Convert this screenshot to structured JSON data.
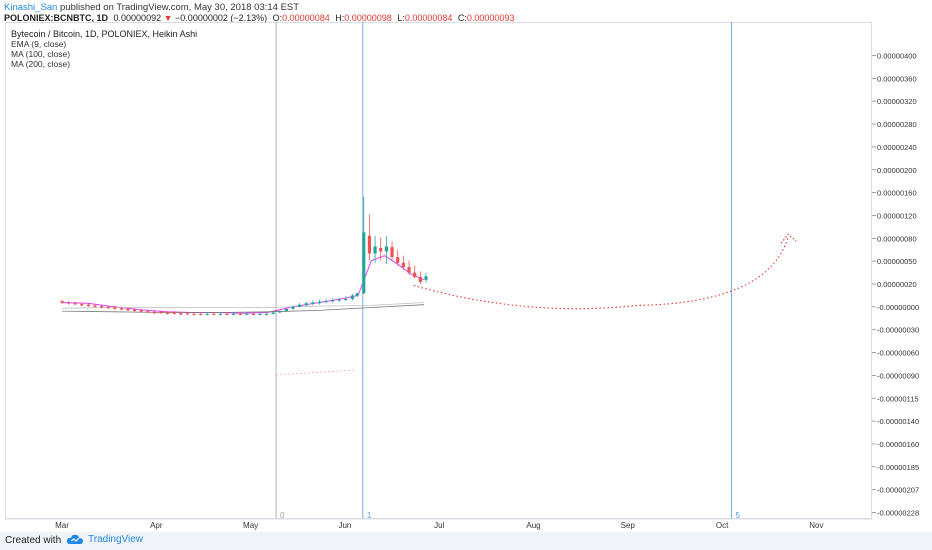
{
  "header": {
    "author": "Kinashi_San",
    "published": "published on TradingView.com, May 30, 2018 03:14 EST",
    "symbol": "POLONIEX:BCNBTC, 1D",
    "last": "0.00000092",
    "change_arrow": "▼",
    "change": "−0.00000002 (−2.13%)",
    "o_label": "O:",
    "o_value": "0.00000084",
    "h_label": "H:",
    "h_value": "0.00000098",
    "l_label": "L:",
    "l_value": "0.00000084",
    "c_label": "C:",
    "c_value": "0.00000093"
  },
  "legend": {
    "title": "Bytecoin / Bitcoin, 1D, POLONIEX, Heikin Ashi",
    "ema": "EMA (9, close)",
    "ma100": "MA (100, close)",
    "ma200": "MA (200, close)"
  },
  "footer": {
    "created": "Created with",
    "brand": "TradingView"
  },
  "colors": {
    "up": "#26a69a",
    "down": "#ef5350",
    "ema": "#e040fb",
    "ma100": "#bdbdbd",
    "ma200": "#757575",
    "vline": "#5b9bd5",
    "arrow": "#e53935",
    "price_tag": "#26a69a"
  },
  "chart_data": {
    "type": "candlestick",
    "style": "Heikin Ashi",
    "title": "Bytecoin / Bitcoin, 1D, POLONIEX, Heikin Ashi",
    "x_ticks": [
      "Mar",
      "Apr",
      "May",
      "Jun",
      "Jul",
      "Aug",
      "Sep",
      "Oct",
      "Nov"
    ],
    "y_ticks": [
      "0.00000400",
      "0.00000360",
      "0.00000320",
      "0.00000280",
      "0.00000240",
      "0.00000200",
      "0.00000160",
      "0.00000120",
      "0.00000080",
      "0.00000050",
      "0.00000020",
      "-0.00000000",
      "-0.00000030",
      "-0.00000060",
      "-0.00000090",
      "-0.00000115",
      "-0.00000140",
      "-0.00000160",
      "-0.00000185",
      "-0.00000207",
      "-0.00000228"
    ],
    "last_price": "0.00000092",
    "grid": false,
    "vertical_markers": [
      {
        "label": "0",
        "month_pos": 2.27
      },
      {
        "label": "1",
        "month_pos": 3.19
      },
      {
        "label": "5",
        "month_pos": 7.1
      }
    ],
    "projection": {
      "type": "dotted-curve-arrow",
      "start": [
        3.73,
        8e-07
      ],
      "trough": [
        6.1,
        5.2e-07
      ],
      "end": [
        7.7,
        1.48e-06
      ]
    },
    "series": [
      {
        "name": "EMA (9, close)",
        "values": [
          [
            0.0,
            5.6e-07
          ],
          [
            0.27,
            5.5e-07
          ],
          [
            0.55,
            5e-07
          ],
          [
            0.82,
            4.6e-07
          ],
          [
            1.1,
            4.3e-07
          ],
          [
            1.37,
            4.2e-07
          ],
          [
            1.65,
            4.2e-07
          ],
          [
            1.92,
            4.1e-07
          ],
          [
            2.18,
            4.2e-07
          ],
          [
            2.45,
            5e-07
          ],
          [
            2.73,
            5.6e-07
          ],
          [
            3.0,
            6.2e-07
          ],
          [
            3.14,
            6.6e-07
          ],
          [
            3.28,
            1.15e-06
          ],
          [
            3.42,
            1.22e-06
          ],
          [
            3.56,
            1.1e-06
          ],
          [
            3.7,
            9.6e-07
          ],
          [
            3.84,
            8.8e-07
          ]
        ]
      },
      {
        "name": "MA (100, close)",
        "values": [
          [
            0.0,
            4.8e-07
          ],
          [
            0.55,
            4.9e-07
          ],
          [
            1.1,
            4.9e-07
          ],
          [
            1.65,
            4.9e-07
          ],
          [
            2.18,
            4.9e-07
          ],
          [
            2.73,
            5.1e-07
          ],
          [
            3.28,
            5.2e-07
          ],
          [
            3.84,
            5.6e-07
          ]
        ]
      },
      {
        "name": "MA (200, close)",
        "values": [
          [
            0.0,
            4.4e-07
          ],
          [
            0.55,
            4.3e-07
          ],
          [
            1.1,
            4.2e-07
          ],
          [
            1.65,
            4.2e-07
          ],
          [
            2.18,
            4.3e-07
          ],
          [
            2.73,
            4.5e-07
          ],
          [
            3.28,
            4.9e-07
          ],
          [
            3.84,
            5.3e-07
          ]
        ]
      }
    ],
    "candles": [
      [
        0.0,
        5.8e-07,
        6e-07,
        5.4e-07,
        5.6e-07
      ],
      [
        0.07,
        5.6e-07,
        5.8e-07,
        5.3e-07,
        5.5e-07
      ],
      [
        0.14,
        5.5e-07,
        5.7e-07,
        5.2e-07,
        5.4e-07
      ],
      [
        0.21,
        5.4e-07,
        5.6e-07,
        5.1e-07,
        5.2e-07
      ],
      [
        0.28,
        5.3e-07,
        5.5e-07,
        5e-07,
        5.1e-07
      ],
      [
        0.35,
        5.2e-07,
        5.4e-07,
        4.9e-07,
        5e-07
      ],
      [
        0.42,
        5.1e-07,
        5.3e-07,
        4.8e-07,
        4.9e-07
      ],
      [
        0.49,
        5e-07,
        5.2e-07,
        4.7e-07,
        4.8e-07
      ],
      [
        0.56,
        4.9e-07,
        5.1e-07,
        4.6e-07,
        4.7e-07
      ],
      [
        0.63,
        4.8e-07,
        5e-07,
        4.5e-07,
        4.6e-07
      ],
      [
        0.7,
        4.7e-07,
        4.9e-07,
        4.4e-07,
        4.5e-07
      ],
      [
        0.77,
        4.6e-07,
        4.8e-07,
        4.3e-07,
        4.4e-07
      ],
      [
        0.84,
        4.5e-07,
        4.7e-07,
        4.2e-07,
        4.3e-07
      ],
      [
        0.91,
        4.4e-07,
        4.6e-07,
        4.1e-07,
        4.2e-07
      ],
      [
        0.98,
        4.3e-07,
        4.5e-07,
        4e-07,
        4.1e-07
      ],
      [
        1.05,
        4.3e-07,
        4.5e-07,
        4e-07,
        4.1e-07
      ],
      [
        1.12,
        4.2e-07,
        4.4e-07,
        3.9e-07,
        4e-07
      ],
      [
        1.19,
        4.2e-07,
        4.4e-07,
        3.9e-07,
        4e-07
      ],
      [
        1.26,
        4.1e-07,
        4.3e-07,
        3.8e-07,
        3.9e-07
      ],
      [
        1.33,
        4.1e-07,
        4.3e-07,
        3.8e-07,
        4e-07
      ],
      [
        1.4,
        4e-07,
        4.2e-07,
        3.8e-07,
        3.9e-07
      ],
      [
        1.47,
        4e-07,
        4.2e-07,
        3.8e-07,
        3.9e-07
      ],
      [
        1.54,
        4e-07,
        4.2e-07,
        3.8e-07,
        4e-07
      ],
      [
        1.61,
        4e-07,
        4.2e-07,
        3.8e-07,
        3.9e-07
      ],
      [
        1.68,
        4e-07,
        4.2e-07,
        3.8e-07,
        4e-07
      ],
      [
        1.75,
        4e-07,
        4.2e-07,
        3.8e-07,
        3.9e-07
      ],
      [
        1.82,
        4e-07,
        4.2e-07,
        3.8e-07,
        4e-07
      ],
      [
        1.89,
        4e-07,
        4.2e-07,
        3.8e-07,
        3.9e-07
      ],
      [
        1.96,
        4e-07,
        4.2e-07,
        3.8e-07,
        4e-07
      ],
      [
        2.03,
        4e-07,
        4.2e-07,
        3.8e-07,
        3.9e-07
      ],
      [
        2.1,
        4e-07,
        4.2e-07,
        3.8e-07,
        4e-07
      ],
      [
        2.17,
        4e-07,
        4.2e-07,
        3.8e-07,
        4e-07
      ],
      [
        2.24,
        4e-07,
        4.3e-07,
        3.9e-07,
        4.2e-07
      ],
      [
        2.31,
        4.2e-07,
        4.5e-07,
        4.1e-07,
        4.4e-07
      ],
      [
        2.38,
        4.4e-07,
        4.8e-07,
        4.3e-07,
        4.7e-07
      ],
      [
        2.45,
        4.7e-07,
        5.2e-07,
        4.6e-07,
        5e-07
      ],
      [
        2.52,
        5e-07,
        5.5e-07,
        4.9e-07,
        5.3e-07
      ],
      [
        2.59,
        5.2e-07,
        5.7e-07,
        5.1e-07,
        5.5e-07
      ],
      [
        2.66,
        5.4e-07,
        5.9e-07,
        5.2e-07,
        5.6e-07
      ],
      [
        2.73,
        5.5e-07,
        6e-07,
        5.3e-07,
        5.7e-07
      ],
      [
        2.8,
        5.7e-07,
        6.1e-07,
        5.5e-07,
        5.8e-07
      ],
      [
        2.87,
        5.8e-07,
        6.2e-07,
        5.6e-07,
        5.9e-07
      ],
      [
        2.94,
        5.9e-07,
        6.3e-07,
        5.7e-07,
        6e-07
      ],
      [
        3.01,
        6e-07,
        6.5e-07,
        5.8e-07,
        6.1e-07
      ],
      [
        3.08,
        6.1e-07,
        6.8e-07,
        5.9e-07,
        6.6e-07
      ],
      [
        3.13,
        6.6e-07,
        7e-07,
        6.4e-07,
        6.9e-07
      ],
      [
        3.2,
        6.9e-07,
        2.05e-06,
        6.8e-07,
        1.55e-06
      ],
      [
        3.26,
        1.5e-06,
        1.8e-06,
        1.15e-06,
        1.25e-06
      ],
      [
        3.32,
        1.25e-06,
        1.5e-06,
        1.12e-06,
        1.35e-06
      ],
      [
        3.38,
        1.33e-06,
        1.48e-06,
        1.15e-06,
        1.28e-06
      ],
      [
        3.44,
        1.28e-06,
        1.5e-06,
        1.1e-06,
        1.35e-06
      ],
      [
        3.5,
        1.34e-06,
        1.42e-06,
        1.15e-06,
        1.2e-06
      ],
      [
        3.56,
        1.2e-06,
        1.3e-06,
        1.08e-06,
        1.12e-06
      ],
      [
        3.62,
        1.12e-06,
        1.22e-06,
        1.03e-06,
        1.06e-06
      ],
      [
        3.68,
        1.06e-06,
        1.15e-06,
        9.5e-07,
        9.8e-07
      ],
      [
        3.74,
        9.8e-07,
        1.08e-06,
        9e-07,
        9.2e-07
      ],
      [
        3.8,
        9.2e-07,
        1e-06,
        8.2e-07,
        8.5e-07
      ],
      [
        3.86,
        8.8e-07,
        9.8e-07,
        8.4e-07,
        9.3e-07
      ]
    ]
  }
}
